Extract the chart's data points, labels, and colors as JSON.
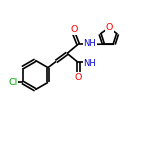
{
  "background_color": "#ffffff",
  "atom_colors": {
    "N": "#0000cc",
    "O": "#ff0000",
    "Cl": "#00aa00"
  },
  "bond_color": "#000000",
  "bond_width": 1.2,
  "figsize": [
    1.5,
    1.5
  ],
  "dpi": 100,
  "xlim": [
    0,
    10
  ],
  "ylim": [
    0,
    10
  ]
}
